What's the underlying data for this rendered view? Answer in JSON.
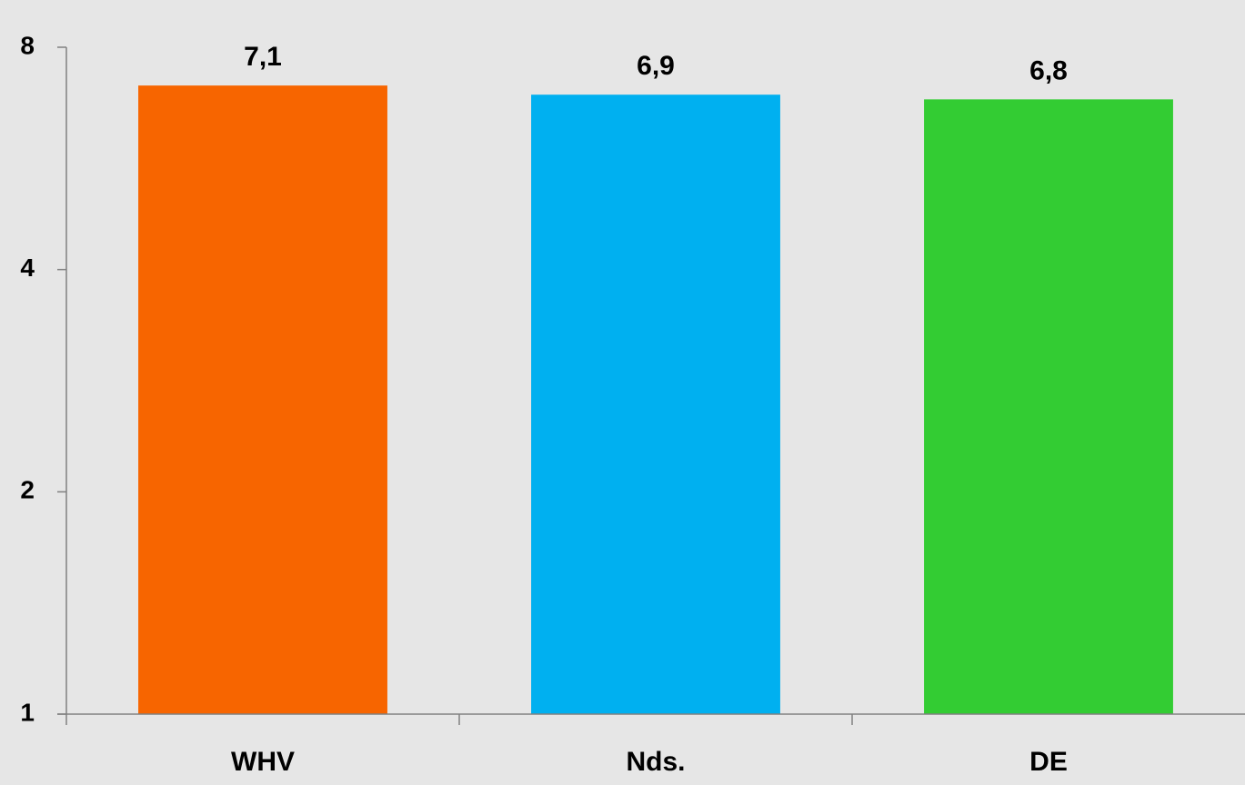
{
  "chart_data": {
    "type": "bar",
    "title": "",
    "xlabel": "",
    "ylabel": "",
    "categories": [
      "WHV",
      "Nds.",
      "DE"
    ],
    "values": [
      7.1,
      6.9,
      6.8
    ],
    "value_labels": [
      "7,1",
      "6,9",
      "6,8"
    ],
    "colors": [
      "#f76500",
      "#00b0f0",
      "#33cc33"
    ],
    "yscale": "log2",
    "ylim": [
      1,
      8
    ],
    "yticks": [
      1,
      2,
      4,
      8
    ],
    "ytick_labels": [
      "1",
      "2",
      "4",
      "8"
    ],
    "grid": false,
    "legend": "none"
  }
}
